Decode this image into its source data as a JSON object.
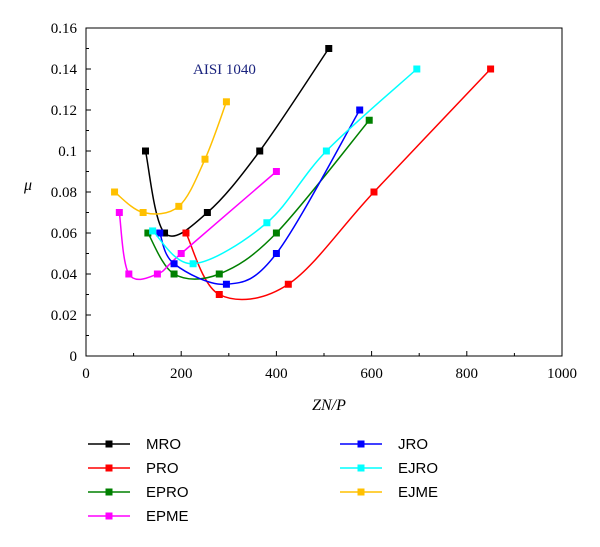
{
  "chart_data": {
    "type": "line",
    "annotation": "AISI 1040",
    "xlabel": "ZN/P",
    "ylabel": "μ",
    "xlim": [
      0,
      1000
    ],
    "ylim": [
      0,
      0.16
    ],
    "xticks": [
      0,
      200,
      400,
      600,
      800,
      1000
    ],
    "yticks": [
      0,
      0.02,
      0.04,
      0.06,
      0.08,
      0.1,
      0.12,
      0.14,
      0.16
    ],
    "grid": false,
    "legend_position": "bottom",
    "series": [
      {
        "name": "MRO",
        "color": "#000000",
        "points": [
          [
            125,
            0.1
          ],
          [
            165,
            0.06
          ],
          [
            255,
            0.07
          ],
          [
            365,
            0.1
          ],
          [
            510,
            0.15
          ]
        ]
      },
      {
        "name": "PRO",
        "color": "#ff0000",
        "points": [
          [
            210,
            0.06
          ],
          [
            280,
            0.03
          ],
          [
            425,
            0.035
          ],
          [
            605,
            0.08
          ],
          [
            850,
            0.14
          ]
        ]
      },
      {
        "name": "EPRO",
        "color": "#008000",
        "points": [
          [
            130,
            0.06
          ],
          [
            185,
            0.04
          ],
          [
            280,
            0.04
          ],
          [
            400,
            0.06
          ],
          [
            595,
            0.115
          ]
        ]
      },
      {
        "name": "EPME",
        "color": "#ff00ff",
        "points": [
          [
            70,
            0.07
          ],
          [
            90,
            0.04
          ],
          [
            150,
            0.04
          ],
          [
            200,
            0.05
          ],
          [
            400,
            0.09
          ]
        ]
      },
      {
        "name": "JRO",
        "color": "#0000ff",
        "points": [
          [
            155,
            0.06
          ],
          [
            185,
            0.045
          ],
          [
            295,
            0.035
          ],
          [
            400,
            0.05
          ],
          [
            575,
            0.12
          ]
        ]
      },
      {
        "name": "EJRO",
        "color": "#00ffff",
        "points": [
          [
            140,
            0.061
          ],
          [
            225,
            0.045
          ],
          [
            380,
            0.065
          ],
          [
            505,
            0.1
          ],
          [
            695,
            0.14
          ]
        ]
      },
      {
        "name": "EJME",
        "color": "#ffc000",
        "points": [
          [
            60,
            0.08
          ],
          [
            120,
            0.07
          ],
          [
            195,
            0.073
          ],
          [
            250,
            0.096
          ],
          [
            295,
            0.124
          ]
        ]
      }
    ]
  }
}
